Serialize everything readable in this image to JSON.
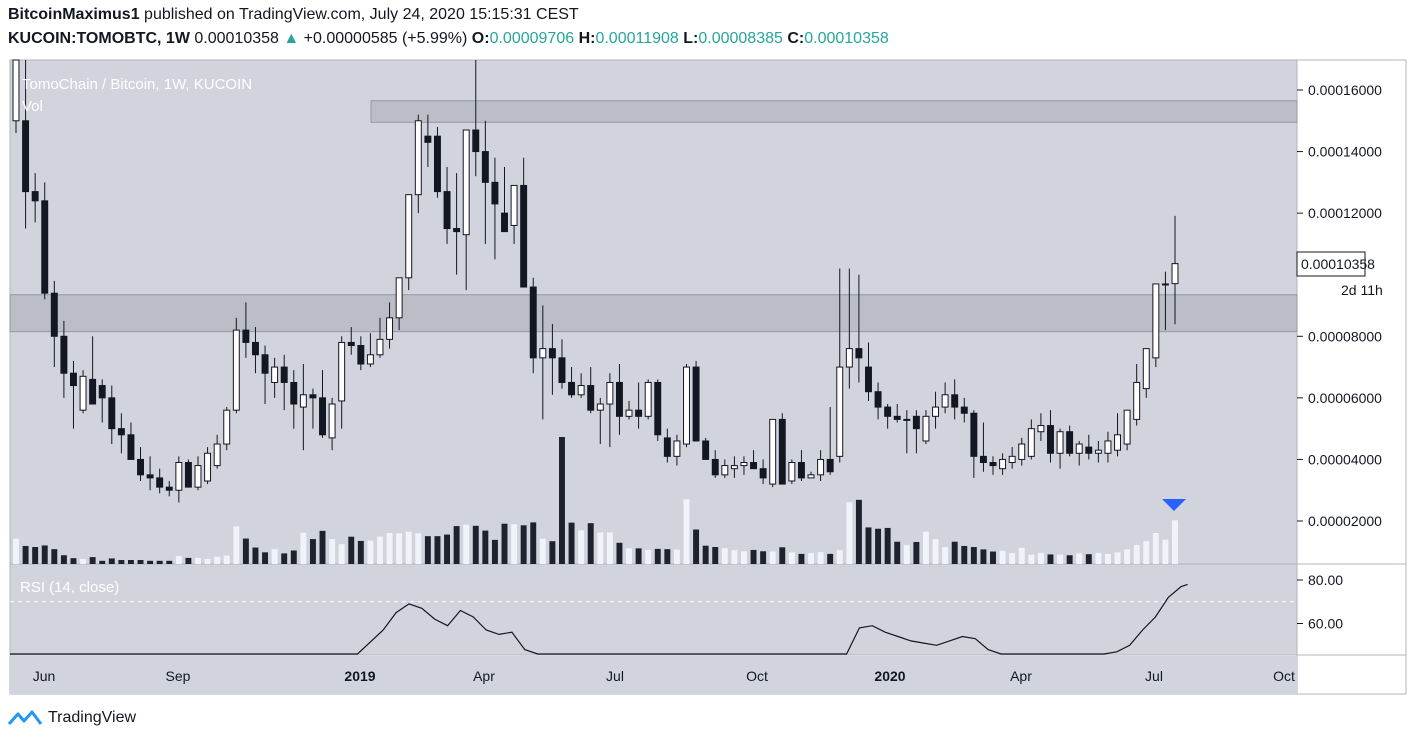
{
  "header": {
    "author": "BitcoinMaximus1",
    "published": " published on TradingView.com, July 24, 2020 15:15:31 CEST",
    "symbol": "KUCOIN:TOMOBTC, 1W",
    "last": "0.00010358",
    "change": "+0.00000585 (+5.99%)",
    "open_label": "O:",
    "open": "0.00009706",
    "high_label": "H:",
    "high": "0.00011908",
    "low_label": "L:",
    "low": "0.00008385",
    "close_label": "C:",
    "close": "0.00010358"
  },
  "chart_data": {
    "type": "candlestick",
    "title": "TomoChain / Bitcoin, 1W, KUCOIN",
    "volume_label": "Vol",
    "rsi_label": "RSI (14, close)",
    "price_ticks": [
      "0.00016000",
      "0.00014000",
      "0.00012000",
      "0.00008000",
      "0.00006000",
      "0.00004000",
      "0.00002000"
    ],
    "price_tick_values": [
      0.00016,
      0.00014,
      0.00012,
      8e-05,
      6e-05,
      4e-05,
      2e-05
    ],
    "rsi_ticks": [
      "80.00",
      "60.00"
    ],
    "rsi_tick_values": [
      80,
      60
    ],
    "x_ticks": [
      "Jun",
      "Sep",
      "2019",
      "Apr",
      "Jul",
      "Oct",
      "2020",
      "Apr",
      "Jul",
      "Oct"
    ],
    "last_price_label": "0.00010358",
    "countdown_label": "2d 11h",
    "resistance_zones": [
      {
        "from": 0.0001495,
        "to": 0.0001565
      },
      {
        "from": 8.15e-05,
        "to": 9.35e-05
      }
    ],
    "candles_ohlc": [
      [
        0.00015,
        0.000186,
        0.000146,
        0.00017
      ],
      [
        0.00015,
        0.00018,
        0.000115,
        0.000127
      ],
      [
        0.000127,
        0.000133,
        0.000117,
        0.000124
      ],
      [
        0.000124,
        0.00013,
        9.2e-05,
        9.4e-05
      ],
      [
        9.4e-05,
        9.8e-05,
        7e-05,
        8e-05
      ],
      [
        8e-05,
        8.5e-05,
        6e-05,
        6.8e-05
      ],
      [
        6.8e-05,
        7.2e-05,
        5e-05,
        6.4e-05
      ],
      [
        5.6e-05,
        6.9e-05,
        5.5e-05,
        6.7e-05
      ],
      [
        6.6e-05,
        8e-05,
        5.8e-05,
        5.8e-05
      ],
      [
        6.4e-05,
        6.6e-05,
        5.2e-05,
        6e-05
      ],
      [
        6e-05,
        6.4e-05,
        4.5e-05,
        5e-05
      ],
      [
        5e-05,
        5.5e-05,
        4.2e-05,
        4.8e-05
      ],
      [
        4.8e-05,
        5.2e-05,
        4e-05,
        4e-05
      ],
      [
        4e-05,
        4.4e-05,
        3.3e-05,
        3.5e-05
      ],
      [
        3.5e-05,
        4.1e-05,
        3e-05,
        3.4e-05
      ],
      [
        3.4e-05,
        3.7e-05,
        2.9e-05,
        3.1e-05
      ],
      [
        3.1e-05,
        3.3e-05,
        2.8e-05,
        3e-05
      ],
      [
        3e-05,
        4.1e-05,
        2.6e-05,
        3.9e-05
      ],
      [
        3.9e-05,
        4e-05,
        3.1e-05,
        3.1e-05
      ],
      [
        3.1e-05,
        4.1e-05,
        3e-05,
        3.8e-05
      ],
      [
        3.3e-05,
        4.4e-05,
        3.2e-05,
        4.2e-05
      ],
      [
        3.8e-05,
        4.8e-05,
        3.7e-05,
        4.5e-05
      ],
      [
        4.5e-05,
        5.7e-05,
        4.3e-05,
        5.6e-05
      ],
      [
        5.6e-05,
        8.6e-05,
        5.5e-05,
        8.2e-05
      ],
      [
        8.2e-05,
        9.1e-05,
        7.3e-05,
        7.8e-05
      ],
      [
        7.8e-05,
        8.3e-05,
        6.8e-05,
        7.4e-05
      ],
      [
        7.4e-05,
        7.7e-05,
        5.8e-05,
        6.8e-05
      ],
      [
        6.5e-05,
        7.3e-05,
        6e-05,
        7e-05
      ],
      [
        7e-05,
        7.4e-05,
        5.6e-05,
        6.5e-05
      ],
      [
        6.5e-05,
        6.9e-05,
        5e-05,
        5.8e-05
      ],
      [
        5.7e-05,
        7.1e-05,
        4.3e-05,
        6.1e-05
      ],
      [
        6.1e-05,
        6.3e-05,
        5e-05,
        6e-05
      ],
      [
        6e-05,
        6.9e-05,
        4.7e-05,
        4.8e-05
      ],
      [
        4.7e-05,
        6e-05,
        4.3e-05,
        5.8e-05
      ],
      [
        5.9e-05,
        8e-05,
        5e-05,
        7.8e-05
      ],
      [
        7.8e-05,
        8.3e-05,
        7.4e-05,
        7.7e-05
      ],
      [
        7.7e-05,
        8e-05,
        6.9e-05,
        7.1e-05
      ],
      [
        7.1e-05,
        8.1e-05,
        7e-05,
        7.4e-05
      ],
      [
        7.4e-05,
        8.6e-05,
        7.3e-05,
        7.9e-05
      ],
      [
        7.9e-05,
        9.1e-05,
        7.6e-05,
        8.6e-05
      ],
      [
        8.6e-05,
        9.5e-05,
        8.2e-05,
        9.9e-05
      ],
      [
        9.9e-05,
        0.000116,
        9.5e-05,
        0.000126
      ],
      [
        0.000126,
        0.000152,
        0.00012,
        0.00015
      ],
      [
        0.000145,
        0.000152,
        0.000135,
        0.000143
      ],
      [
        0.000145,
        0.000148,
        0.000125,
        0.000127
      ],
      [
        0.000127,
        0.000135,
        0.00011,
        0.000115
      ],
      [
        0.000115,
        0.000133,
        0.0001,
        0.000114
      ],
      [
        0.000113,
        0.000137,
        9.5e-05,
        0.000147
      ],
      [
        0.000147,
        0.000188,
        0.000132,
        0.00014
      ],
      [
        0.00014,
        0.00015,
        0.00011,
        0.00013
      ],
      [
        0.00013,
        0.000138,
        0.000105,
        0.000123
      ],
      [
        0.00012,
        0.000135,
        0.000114,
        0.000114
      ],
      [
        0.000116,
        0.000125,
        0.00011,
        0.000129
      ],
      [
        0.000129,
        0.000138,
        0.000101,
        9.6e-05
      ],
      [
        9.6e-05,
        9.9e-05,
        6.8e-05,
        7.3e-05
      ],
      [
        7.3e-05,
        9e-05,
        5.3e-05,
        7.6e-05
      ],
      [
        7.6e-05,
        8.4e-05,
        6.1e-05,
        7.3e-05
      ],
      [
        7.3e-05,
        7.9e-05,
        6.3e-05,
        6.5e-05
      ],
      [
        6.5e-05,
        7e-05,
        6e-05,
        6.1e-05
      ],
      [
        6.1e-05,
        6.8e-05,
        6e-05,
        6.4e-05
      ],
      [
        6.4e-05,
        7e-05,
        5.5e-05,
        5.6e-05
      ],
      [
        5.6e-05,
        6e-05,
        4.5e-05,
        5.8e-05
      ],
      [
        5.8e-05,
        6.8e-05,
        4.4e-05,
        6.5e-05
      ],
      [
        6.5e-05,
        7.1e-05,
        4.8e-05,
        5.4e-05
      ],
      [
        5.4e-05,
        5.9e-05,
        5.3e-05,
        5.6e-05
      ],
      [
        5.6e-05,
        6.5e-05,
        5e-05,
        5.4e-05
      ],
      [
        5.4e-05,
        6.6e-05,
        5.3e-05,
        6.5e-05
      ],
      [
        6.5e-05,
        6.6e-05,
        4.6e-05,
        4.8e-05
      ],
      [
        4.7e-05,
        5e-05,
        3.9e-05,
        4.1e-05
      ],
      [
        4.1e-05,
        4.8e-05,
        3.8e-05,
        4.6e-05
      ],
      [
        4.5e-05,
        7.1e-05,
        4.4e-05,
        7e-05
      ],
      [
        7e-05,
        7.2e-05,
        4.8e-05,
        4.6e-05
      ],
      [
        4.6e-05,
        4.7e-05,
        4e-05,
        4e-05
      ],
      [
        4e-05,
        4.3e-05,
        3.4e-05,
        3.5e-05
      ],
      [
        3.5e-05,
        4e-05,
        3.4e-05,
        3.8e-05
      ],
      [
        3.7e-05,
        4.1e-05,
        3.4e-05,
        3.8e-05
      ],
      [
        3.8e-05,
        4.1e-05,
        3.5e-05,
        3.9e-05
      ],
      [
        3.9e-05,
        4.3e-05,
        3.7e-05,
        3.7e-05
      ],
      [
        3.7e-05,
        4e-05,
        3.2e-05,
        3.4e-05
      ],
      [
        3.2e-05,
        5.3e-05,
        3.1e-05,
        5.3e-05
      ],
      [
        5.3e-05,
        5.5e-05,
        3.2e-05,
        3.2e-05
      ],
      [
        3.3e-05,
        4e-05,
        3.2e-05,
        3.9e-05
      ],
      [
        3.9e-05,
        4.3e-05,
        3.3e-05,
        3.4e-05
      ],
      [
        3.4e-05,
        3.6e-05,
        3.4e-05,
        3.5e-05
      ],
      [
        3.5e-05,
        4.3e-05,
        3.3e-05,
        4e-05
      ],
      [
        4e-05,
        5.7e-05,
        3.5e-05,
        3.6e-05
      ],
      [
        4.1e-05,
        0.000102,
        3.9e-05,
        7e-05
      ],
      [
        7e-05,
        0.000102,
        6.3e-05,
        7.6e-05
      ],
      [
        7.6e-05,
        0.0001,
        6.5e-05,
        7.3e-05
      ],
      [
        7e-05,
        7.8e-05,
        5.9e-05,
        6.2e-05
      ],
      [
        6.2e-05,
        6.5e-05,
        5.3e-05,
        5.7e-05
      ],
      [
        5.7e-05,
        5.8e-05,
        5e-05,
        5.4e-05
      ],
      [
        5.4e-05,
        5.8e-05,
        5.2e-05,
        5.3e-05
      ],
      [
        5.3e-05,
        5.6e-05,
        4.2e-05,
        5.3e-05
      ],
      [
        5.4e-05,
        5.6e-05,
        4.2e-05,
        5e-05
      ],
      [
        4.6e-05,
        5.6e-05,
        4.5e-05,
        5.4e-05
      ],
      [
        5.4e-05,
        6.2e-05,
        5e-05,
        5.7e-05
      ],
      [
        5.7e-05,
        6.5e-05,
        5.5e-05,
        6.1e-05
      ],
      [
        6.1e-05,
        6.6e-05,
        5.3e-05,
        5.7e-05
      ],
      [
        5.7e-05,
        6e-05,
        5.2e-05,
        5.5e-05
      ],
      [
        5.5e-05,
        5.6e-05,
        3.4e-05,
        4.1e-05
      ],
      [
        4.1e-05,
        5.2e-05,
        3.6e-05,
        3.9e-05
      ],
      [
        3.9e-05,
        4.1e-05,
        3.5e-05,
        3.8e-05
      ],
      [
        3.7e-05,
        4.2e-05,
        3.5e-05,
        4e-05
      ],
      [
        3.9e-05,
        4.4e-05,
        3.7e-05,
        4.1e-05
      ],
      [
        4e-05,
        4.7e-05,
        3.8e-05,
        4.5e-05
      ],
      [
        4.1e-05,
        5.3e-05,
        4e-05,
        5e-05
      ],
      [
        4.9e-05,
        5.5e-05,
        4.6e-05,
        5.1e-05
      ],
      [
        5.1e-05,
        5.6e-05,
        3.9e-05,
        4.2e-05
      ],
      [
        4.2e-05,
        5e-05,
        3.7e-05,
        4.9e-05
      ],
      [
        4.9e-05,
        5.1e-05,
        4.1e-05,
        4.2e-05
      ],
      [
        4.2e-05,
        4.6e-05,
        3.8e-05,
        4.5e-05
      ],
      [
        4.4e-05,
        4.8e-05,
        4e-05,
        4.2e-05
      ],
      [
        4.2e-05,
        4.6e-05,
        3.9e-05,
        4.3e-05
      ],
      [
        4.2e-05,
        4.9e-05,
        3.9e-05,
        4.6e-05
      ],
      [
        4.3e-05,
        5.5e-05,
        4.1e-05,
        4.8e-05
      ],
      [
        4.5e-05,
        5.6e-05,
        4.3e-05,
        5.6e-05
      ],
      [
        5.3e-05,
        7.1e-05,
        5.1e-05,
        6.5e-05
      ],
      [
        6.3e-05,
        7.6e-05,
        6e-05,
        7.6e-05
      ],
      [
        7.3e-05,
        8e-05,
        7e-05,
        9.7e-05
      ],
      [
        9.7e-05,
        0.000101,
        8.2e-05,
        9.7e-05
      ],
      [
        9.71e-05,
        0.0001191,
        8.39e-05,
        0.0001036
      ]
    ],
    "volumes": [
      0.95,
      0.68,
      0.64,
      0.7,
      0.56,
      0.33,
      0.22,
      0.19,
      0.26,
      0.12,
      0.21,
      0.15,
      0.15,
      0.15,
      0.12,
      0.12,
      0.12,
      0.3,
      0.23,
      0.23,
      0.19,
      0.27,
      0.32,
      1.42,
      0.96,
      0.62,
      0.44,
      0.56,
      0.4,
      0.51,
      1.18,
      0.94,
      1.25,
      0.94,
      0.75,
      1.03,
      0.87,
      0.88,
      1.03,
      1.17,
      1.16,
      1.22,
      1.16,
      1.05,
      1.05,
      1.11,
      1.43,
      1.48,
      1.44,
      1.26,
      0.91,
      1.52,
      1.5,
      1.46,
      1.57,
      0.95,
      0.86,
      4.79,
      1.56,
      1.27,
      1.54,
      1.19,
      1.19,
      0.8,
      0.59,
      0.59,
      0.53,
      0.57,
      0.56,
      0.54,
      2.44,
      1.3,
      0.69,
      0.64,
      0.6,
      0.52,
      0.48,
      0.53,
      0.48,
      0.47,
      0.63,
      0.44,
      0.38,
      0.41,
      0.45,
      0.38,
      0.52,
      2.33,
      2.42,
      1.38,
      1.33,
      1.36,
      0.84,
      0.71,
      0.83,
      1.22,
      0.94,
      0.64,
      0.84,
      0.68,
      0.64,
      0.55,
      0.47,
      0.5,
      0.41,
      0.61,
      0.35,
      0.42,
      0.36,
      0.35,
      0.33,
      0.4,
      0.37,
      0.42,
      0.38,
      0.44,
      0.55,
      0.71,
      0.86,
      1.17,
      0.92,
      1.65
    ],
    "rsi_points": [
      [
        0.0,
        41.0
      ],
      [
        0.04,
        41.5
      ],
      [
        0.23,
        41.5
      ],
      [
        0.27,
        45.0
      ],
      [
        0.29,
        57.0
      ],
      [
        0.3,
        65.0
      ],
      [
        0.31,
        69.0
      ],
      [
        0.32,
        67.0
      ],
      [
        0.33,
        62.0
      ],
      [
        0.34,
        59.0
      ],
      [
        0.35,
        66.0
      ],
      [
        0.36,
        63.0
      ],
      [
        0.37,
        57.0
      ],
      [
        0.38,
        55.0
      ],
      [
        0.39,
        56.0
      ],
      [
        0.4,
        48.0
      ],
      [
        0.41,
        43.0
      ],
      [
        0.52,
        43.0
      ],
      [
        0.53,
        46.0
      ],
      [
        0.54,
        43.0
      ],
      [
        0.6,
        43.0
      ],
      [
        0.61,
        45.0
      ],
      [
        0.62,
        43.0
      ],
      [
        0.65,
        43.0
      ],
      [
        0.66,
        58.0
      ],
      [
        0.67,
        59.0
      ],
      [
        0.68,
        56.0
      ],
      [
        0.69,
        54.0
      ],
      [
        0.7,
        52.0
      ],
      [
        0.71,
        51.0
      ],
      [
        0.72,
        50.0
      ],
      [
        0.73,
        52.0
      ],
      [
        0.74,
        54.0
      ],
      [
        0.75,
        53.0
      ],
      [
        0.76,
        48.0
      ],
      [
        0.77,
        44.0
      ],
      [
        0.8,
        45.0
      ],
      [
        0.81,
        45.5
      ],
      [
        0.82,
        44.0
      ],
      [
        0.83,
        45.5
      ],
      [
        0.84,
        44.0
      ],
      [
        0.85,
        45.0
      ],
      [
        0.86,
        47.0
      ],
      [
        0.87,
        50.0
      ],
      [
        0.88,
        57.0
      ],
      [
        0.89,
        63.0
      ],
      [
        0.9,
        72.0
      ],
      [
        0.91,
        77.0
      ],
      [
        0.915,
        78.0
      ]
    ]
  },
  "footer": {
    "brand": "TradingView"
  }
}
